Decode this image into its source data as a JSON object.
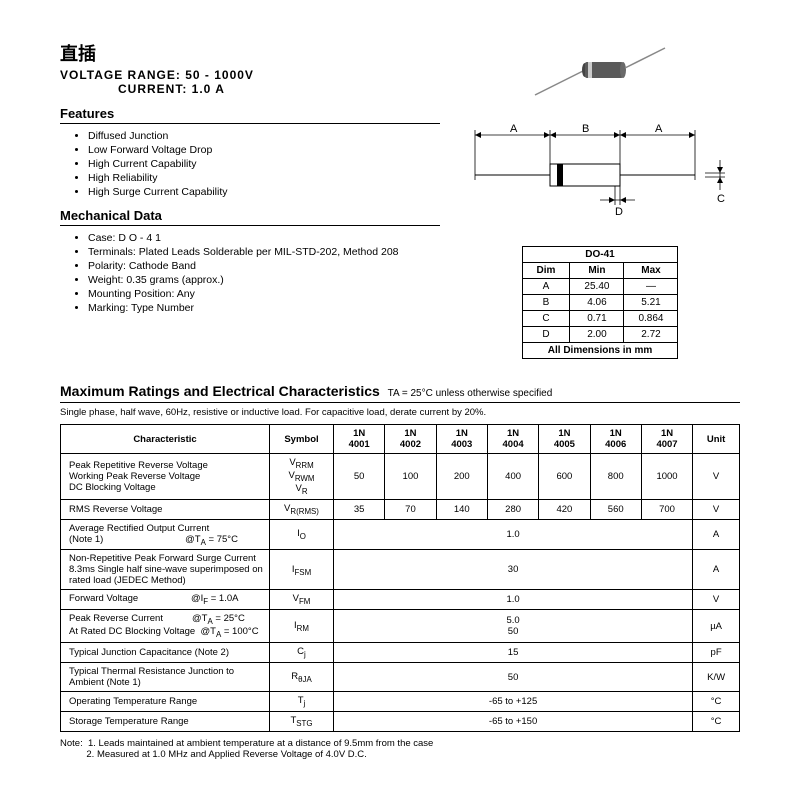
{
  "title_cn": "直插",
  "voltage_label": "VOLTAGE  RANGE:  50 - 1000V",
  "current_label": "CURRENT:  1.0 A",
  "features_h": "Features",
  "features": [
    "Diffused Junction",
    "Low Forward Voltage Drop",
    "High Current Capability",
    "High Reliability",
    "High Surge Current Capability"
  ],
  "mech_h": "Mechanical Data",
  "mech": [
    "Case:  D O - 4 1",
    "Terminals: Plated Leads Solderable per MIL-STD-202, Method 208",
    "Polarity: Cathode Band",
    "Weight: 0.35 grams (approx.)",
    "Mounting Position: Any",
    "Marking: Type Number"
  ],
  "dim": {
    "title": "DO-41",
    "cols": [
      "Dim",
      "Min",
      "Max"
    ],
    "rows": [
      [
        "A",
        "25.40",
        "—"
      ],
      [
        "B",
        "4.06",
        "5.21"
      ],
      [
        "C",
        "0.71",
        "0.864"
      ],
      [
        "D",
        "2.00",
        "2.72"
      ]
    ],
    "foot": "All Dimensions in mm"
  },
  "max_h": "Maximum Ratings and Electrical Characteristics",
  "max_sub": "TA = 25°C unless otherwise specified",
  "subnote": "Single phase, half wave, 60Hz, resistive or inductive load. For capacitive load, derate current by 20%.",
  "tbl": {
    "headers": [
      "Characteristic",
      "Symbol",
      "1N 4001",
      "1N 4002",
      "1N 4003",
      "1N 4004",
      "1N 4005",
      "1N 4006",
      "1N 4007",
      "Unit"
    ],
    "rows": [
      {
        "c": "Peak Repetitive Reverse Voltage<br>Working Peak Reverse Voltage<br>DC Blocking Voltage",
        "s": "V<sub>RRM</sub><br>V<sub>RWM</sub><br>V<sub>R</sub>",
        "v": [
          "50",
          "100",
          "200",
          "400",
          "600",
          "800",
          "1000"
        ],
        "u": "V"
      },
      {
        "c": "RMS Reverse Voltage",
        "s": "V<sub>R(RMS)</sub>",
        "v": [
          "35",
          "70",
          "140",
          "280",
          "420",
          "560",
          "700"
        ],
        "u": "V"
      },
      {
        "c": "Average Rectified Output Current<br>(Note 1) &nbsp;&nbsp;&nbsp;&nbsp;&nbsp;&nbsp;&nbsp;&nbsp;&nbsp;&nbsp;&nbsp;&nbsp;&nbsp;&nbsp;&nbsp;&nbsp;&nbsp;&nbsp;&nbsp;&nbsp;&nbsp;&nbsp;&nbsp;&nbsp;&nbsp;&nbsp;&nbsp;&nbsp;&nbsp;&nbsp;@T<sub>A</sub> = 75°C",
        "s": "I<sub>O</sub>",
        "span": "1.0",
        "u": "A"
      },
      {
        "c": "Non-Repetitive Peak Forward Surge Current 8.3ms Single half sine-wave superimposed on rated load (JEDEC Method)",
        "s": "I<sub>FSM</sub>",
        "span": "30",
        "u": "A"
      },
      {
        "c": "Forward Voltage &nbsp;&nbsp;&nbsp;&nbsp;&nbsp;&nbsp;&nbsp;&nbsp;&nbsp;&nbsp;&nbsp;&nbsp;&nbsp;&nbsp;&nbsp;&nbsp;&nbsp;&nbsp;&nbsp;@I<sub>F</sub> = 1.0A",
        "s": "V<sub>FM</sub>",
        "span": "1.0",
        "u": "V"
      },
      {
        "c": "Peak Reverse Current &nbsp;&nbsp;&nbsp;&nbsp;&nbsp;&nbsp;&nbsp;&nbsp;&nbsp;&nbsp;@T<sub>A</sub> = 25°C<br>At Rated DC Blocking Voltage &nbsp;@T<sub>A</sub> = 100°C",
        "s": "I<sub>RM</sub>",
        "span": "5.0<br>50",
        "u": "µA"
      },
      {
        "c": "Typical Junction Capacitance (Note 2)",
        "s": "C<sub>j</sub>",
        "span": "15",
        "u": "pF"
      },
      {
        "c": "Typical Thermal Resistance Junction to Ambient (Note 1)",
        "s": "R<sub>θJA</sub>",
        "span": "50",
        "u": "K/W"
      },
      {
        "c": "Operating Temperature Range",
        "s": "T<sub>j</sub>",
        "span": "-65 to +125",
        "u": "°C"
      },
      {
        "c": "Storage Temperature Range",
        "s": "T<sub>STG</sub>",
        "span": "-65 to +150",
        "u": "°C"
      }
    ]
  },
  "notes": "Note:&nbsp;&nbsp;1. Leads maintained at ambient temperature at a distance of 9.5mm from the case<br>&nbsp;&nbsp;&nbsp;&nbsp;&nbsp;&nbsp;&nbsp;&nbsp;&nbsp;&nbsp;2. Measured at 1.0 MHz and Applied Reverse Voltage of 4.0V D.C.",
  "colors": {
    "body": "#5a5a5a",
    "line": "#000"
  }
}
